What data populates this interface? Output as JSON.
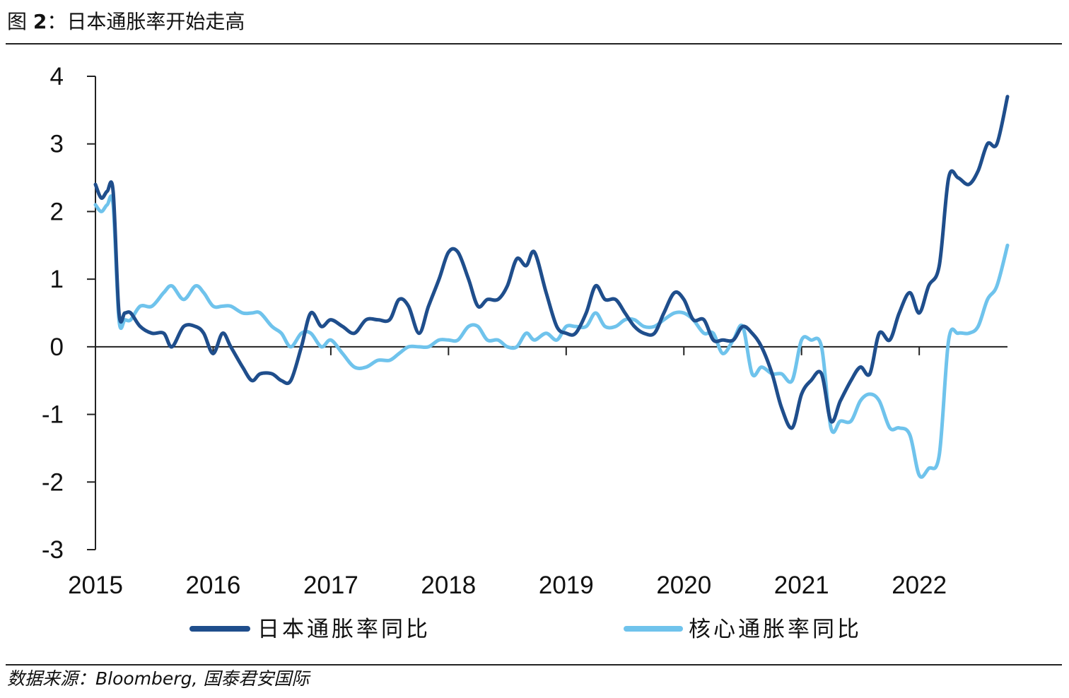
{
  "header": {
    "prefix": "图 ",
    "figure_number": "2",
    "separator": "：",
    "title": "日本通胀率开始走高"
  },
  "source": {
    "text": "数据来源：Bloomberg, 国泰君安国际"
  },
  "chart_data": {
    "type": "line",
    "title": "日本通胀率开始走高",
    "xlabel": "",
    "ylabel": "",
    "xlim": [
      2015,
      2022.75
    ],
    "ylim": [
      -3,
      4
    ],
    "yticks": [
      4,
      3,
      2,
      1,
      0,
      -1,
      -2,
      -3
    ],
    "ytick_labels": [
      "4",
      "3",
      "2",
      "1",
      "0",
      "-1",
      "-2",
      "-3"
    ],
    "xticks": [
      2015,
      2016,
      2017,
      2018,
      2019,
      2020,
      2021,
      2022
    ],
    "xtick_labels": [
      "2015",
      "2016",
      "2017",
      "2018",
      "2019",
      "2020",
      "2021",
      "2022"
    ],
    "grid": false,
    "legend": "bottom",
    "series": [
      {
        "name": "日本通胀率同比",
        "color": "#1f4e8c",
        "points": [
          [
            2015.0,
            2.4
          ],
          [
            2015.05,
            2.2
          ],
          [
            2015.1,
            2.3
          ],
          [
            2015.15,
            2.3
          ],
          [
            2015.2,
            0.5
          ],
          [
            2015.25,
            0.5
          ],
          [
            2015.3,
            0.5
          ],
          [
            2015.38,
            0.3
          ],
          [
            2015.48,
            0.2
          ],
          [
            2015.58,
            0.2
          ],
          [
            2015.65,
            0.0
          ],
          [
            2015.75,
            0.3
          ],
          [
            2015.85,
            0.3
          ],
          [
            2015.92,
            0.2
          ],
          [
            2016.0,
            -0.1
          ],
          [
            2016.08,
            0.2
          ],
          [
            2016.15,
            0.0
          ],
          [
            2016.25,
            -0.3
          ],
          [
            2016.33,
            -0.5
          ],
          [
            2016.4,
            -0.4
          ],
          [
            2016.5,
            -0.4
          ],
          [
            2016.58,
            -0.5
          ],
          [
            2016.66,
            -0.5
          ],
          [
            2016.75,
            0.0
          ],
          [
            2016.83,
            0.5
          ],
          [
            2016.92,
            0.3
          ],
          [
            2017.0,
            0.4
          ],
          [
            2017.1,
            0.3
          ],
          [
            2017.2,
            0.2
          ],
          [
            2017.3,
            0.4
          ],
          [
            2017.4,
            0.4
          ],
          [
            2017.5,
            0.4
          ],
          [
            2017.58,
            0.7
          ],
          [
            2017.66,
            0.6
          ],
          [
            2017.75,
            0.2
          ],
          [
            2017.83,
            0.6
          ],
          [
            2017.92,
            1.0
          ],
          [
            2018.0,
            1.4
          ],
          [
            2018.08,
            1.4
          ],
          [
            2018.17,
            1.0
          ],
          [
            2018.25,
            0.6
          ],
          [
            2018.33,
            0.7
          ],
          [
            2018.42,
            0.7
          ],
          [
            2018.5,
            0.9
          ],
          [
            2018.58,
            1.3
          ],
          [
            2018.66,
            1.2
          ],
          [
            2018.73,
            1.4
          ],
          [
            2018.83,
            0.8
          ],
          [
            2018.92,
            0.3
          ],
          [
            2019.0,
            0.2
          ],
          [
            2019.08,
            0.2
          ],
          [
            2019.17,
            0.5
          ],
          [
            2019.25,
            0.9
          ],
          [
            2019.33,
            0.7
          ],
          [
            2019.42,
            0.7
          ],
          [
            2019.5,
            0.5
          ],
          [
            2019.58,
            0.3
          ],
          [
            2019.66,
            0.2
          ],
          [
            2019.75,
            0.2
          ],
          [
            2019.83,
            0.5
          ],
          [
            2019.92,
            0.8
          ],
          [
            2020.0,
            0.7
          ],
          [
            2020.08,
            0.4
          ],
          [
            2020.17,
            0.4
          ],
          [
            2020.25,
            0.1
          ],
          [
            2020.33,
            0.1
          ],
          [
            2020.42,
            0.1
          ],
          [
            2020.5,
            0.3
          ],
          [
            2020.58,
            0.2
          ],
          [
            2020.66,
            0.0
          ],
          [
            2020.75,
            -0.4
          ],
          [
            2020.83,
            -0.9
          ],
          [
            2020.92,
            -1.2
          ],
          [
            2021.0,
            -0.7
          ],
          [
            2021.08,
            -0.5
          ],
          [
            2021.17,
            -0.4
          ],
          [
            2021.25,
            -1.1
          ],
          [
            2021.33,
            -0.8
          ],
          [
            2021.42,
            -0.5
          ],
          [
            2021.5,
            -0.3
          ],
          [
            2021.58,
            -0.4
          ],
          [
            2021.66,
            0.2
          ],
          [
            2021.75,
            0.1
          ],
          [
            2021.83,
            0.5
          ],
          [
            2021.92,
            0.8
          ],
          [
            2022.0,
            0.5
          ],
          [
            2022.08,
            0.9
          ],
          [
            2022.17,
            1.2
          ],
          [
            2022.25,
            2.5
          ],
          [
            2022.33,
            2.5
          ],
          [
            2022.42,
            2.4
          ],
          [
            2022.5,
            2.6
          ],
          [
            2022.58,
            3.0
          ],
          [
            2022.66,
            3.0
          ],
          [
            2022.75,
            3.7
          ]
        ]
      },
      {
        "name": "核心通胀率同比",
        "color": "#6fc3ec",
        "points": [
          [
            2015.0,
            2.1
          ],
          [
            2015.05,
            2.0
          ],
          [
            2015.1,
            2.1
          ],
          [
            2015.15,
            2.1
          ],
          [
            2015.2,
            0.4
          ],
          [
            2015.25,
            0.4
          ],
          [
            2015.3,
            0.4
          ],
          [
            2015.38,
            0.6
          ],
          [
            2015.48,
            0.6
          ],
          [
            2015.58,
            0.8
          ],
          [
            2015.65,
            0.9
          ],
          [
            2015.75,
            0.7
          ],
          [
            2015.85,
            0.9
          ],
          [
            2015.92,
            0.8
          ],
          [
            2016.0,
            0.6
          ],
          [
            2016.08,
            0.6
          ],
          [
            2016.15,
            0.6
          ],
          [
            2016.25,
            0.5
          ],
          [
            2016.33,
            0.5
          ],
          [
            2016.4,
            0.5
          ],
          [
            2016.5,
            0.3
          ],
          [
            2016.58,
            0.2
          ],
          [
            2016.66,
            0.0
          ],
          [
            2016.75,
            0.2
          ],
          [
            2016.83,
            0.2
          ],
          [
            2016.92,
            0.0
          ],
          [
            2017.0,
            0.1
          ],
          [
            2017.1,
            -0.1
          ],
          [
            2017.2,
            -0.3
          ],
          [
            2017.3,
            -0.3
          ],
          [
            2017.4,
            -0.2
          ],
          [
            2017.5,
            -0.2
          ],
          [
            2017.58,
            -0.1
          ],
          [
            2017.66,
            0.0
          ],
          [
            2017.75,
            0.0
          ],
          [
            2017.83,
            0.0
          ],
          [
            2017.92,
            0.1
          ],
          [
            2018.0,
            0.1
          ],
          [
            2018.08,
            0.1
          ],
          [
            2018.17,
            0.3
          ],
          [
            2018.25,
            0.3
          ],
          [
            2018.33,
            0.1
          ],
          [
            2018.42,
            0.1
          ],
          [
            2018.5,
            0.0
          ],
          [
            2018.58,
            0.0
          ],
          [
            2018.66,
            0.2
          ],
          [
            2018.73,
            0.1
          ],
          [
            2018.83,
            0.2
          ],
          [
            2018.92,
            0.1
          ],
          [
            2019.0,
            0.3
          ],
          [
            2019.08,
            0.3
          ],
          [
            2019.17,
            0.3
          ],
          [
            2019.25,
            0.5
          ],
          [
            2019.33,
            0.3
          ],
          [
            2019.42,
            0.3
          ],
          [
            2019.5,
            0.4
          ],
          [
            2019.58,
            0.4
          ],
          [
            2019.66,
            0.3
          ],
          [
            2019.75,
            0.3
          ],
          [
            2019.83,
            0.4
          ],
          [
            2019.92,
            0.5
          ],
          [
            2020.0,
            0.5
          ],
          [
            2020.08,
            0.4
          ],
          [
            2020.17,
            0.2
          ],
          [
            2020.25,
            0.2
          ],
          [
            2020.33,
            -0.1
          ],
          [
            2020.42,
            0.1
          ],
          [
            2020.5,
            0.3
          ],
          [
            2020.58,
            -0.4
          ],
          [
            2020.66,
            -0.3
          ],
          [
            2020.75,
            -0.4
          ],
          [
            2020.83,
            -0.4
          ],
          [
            2020.92,
            -0.5
          ],
          [
            2021.0,
            0.1
          ],
          [
            2021.08,
            0.1
          ],
          [
            2021.17,
            0.0
          ],
          [
            2021.25,
            -1.2
          ],
          [
            2021.33,
            -1.1
          ],
          [
            2021.42,
            -1.1
          ],
          [
            2021.5,
            -0.8
          ],
          [
            2021.58,
            -0.7
          ],
          [
            2021.66,
            -0.8
          ],
          [
            2021.75,
            -1.2
          ],
          [
            2021.83,
            -1.2
          ],
          [
            2021.92,
            -1.3
          ],
          [
            2022.0,
            -1.9
          ],
          [
            2022.08,
            -1.8
          ],
          [
            2022.17,
            -1.6
          ],
          [
            2022.25,
            0.1
          ],
          [
            2022.33,
            0.2
          ],
          [
            2022.42,
            0.2
          ],
          [
            2022.5,
            0.3
          ],
          [
            2022.58,
            0.7
          ],
          [
            2022.66,
            0.9
          ],
          [
            2022.75,
            1.5
          ]
        ]
      }
    ]
  }
}
